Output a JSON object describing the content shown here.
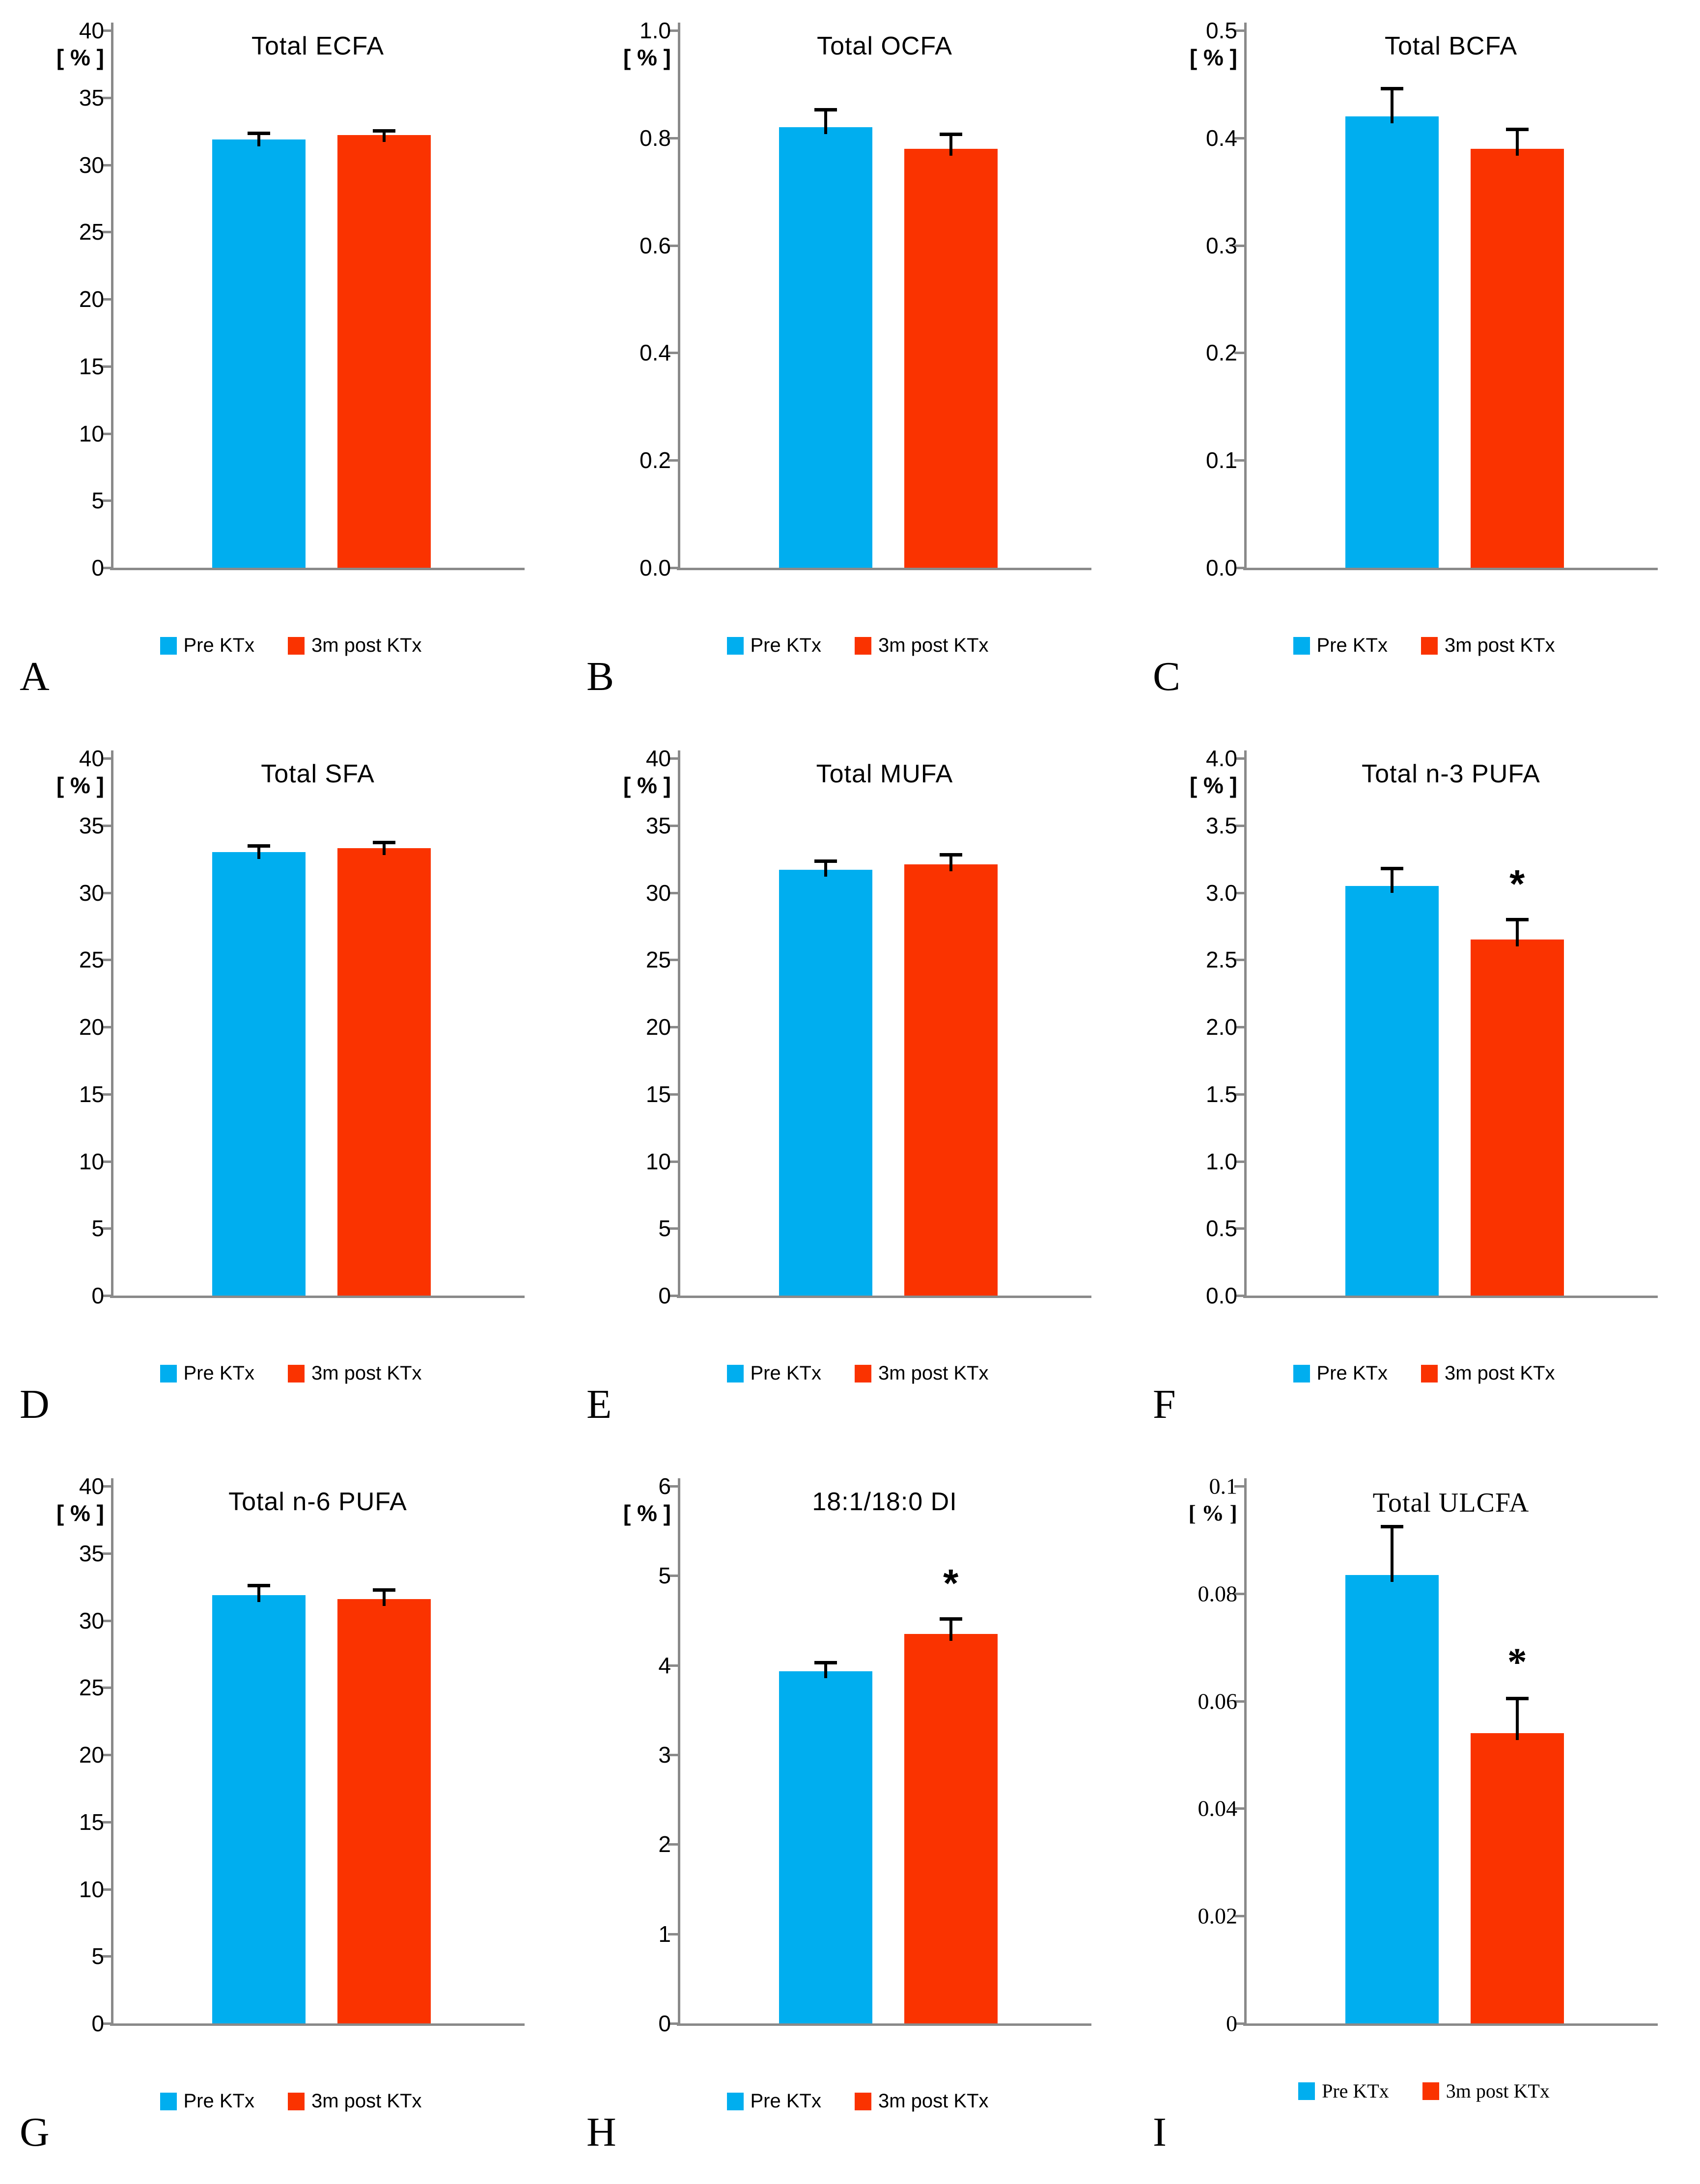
{
  "figure": {
    "background": "#ffffff",
    "unit_label": "[ % ]"
  },
  "colors": {
    "pre": "#00AEEF",
    "post": "#FA3300",
    "axis": "#8a8a8a",
    "error_bar": "#000000",
    "text": "#000000"
  },
  "legend": {
    "items": [
      {
        "label": "Pre KTx",
        "color_key": "pre"
      },
      {
        "label": "3m post KTx",
        "color_key": "post"
      }
    ]
  },
  "chart_data": [
    {
      "letter": "A",
      "type": "bar",
      "title": "Total ECFA",
      "ylabel": "[ % ]",
      "ylim": [
        0,
        40
      ],
      "yticks": [
        "40",
        "35",
        "30",
        "25",
        "20",
        "15",
        "10",
        "5",
        "0"
      ],
      "categories": [
        "Pre KTx",
        "3m post KTx"
      ],
      "values": [
        31.9,
        32.2
      ],
      "errors": [
        0.45,
        0.35
      ],
      "significant": [
        false,
        false
      ],
      "sig_marker": ""
    },
    {
      "letter": "B",
      "type": "bar",
      "title": "Total OCFA",
      "ylabel": "[ % ]",
      "ylim": [
        0,
        1.0
      ],
      "yticks": [
        "1.0",
        "0.8",
        "0.6",
        "0.4",
        "0.2",
        "0.0"
      ],
      "categories": [
        "Pre KTx",
        "3m post KTx"
      ],
      "values": [
        0.82,
        0.78
      ],
      "errors": [
        0.033,
        0.027
      ],
      "significant": [
        false,
        false
      ],
      "sig_marker": ""
    },
    {
      "letter": "C",
      "type": "bar",
      "title": "Total BCFA",
      "ylabel": "[ % ]",
      "ylim": [
        0,
        0.5
      ],
      "yticks": [
        "0.5",
        "0.4",
        "0.3",
        "0.2",
        "0.1",
        "0.0"
      ],
      "categories": [
        "Pre KTx",
        "3m post KTx"
      ],
      "values": [
        0.42,
        0.39
      ],
      "errors": [
        0.026,
        0.018
      ],
      "significant": [
        false,
        false
      ],
      "sig_marker": ""
    },
    {
      "letter": "D",
      "type": "bar",
      "title": "Total SFA",
      "ylabel": "[ % ]",
      "ylim": [
        0,
        40
      ],
      "yticks": [
        "40",
        "35",
        "30",
        "25",
        "20",
        "15",
        "10",
        "5",
        "0"
      ],
      "categories": [
        "Pre KTx",
        "3m post KTx"
      ],
      "values": [
        33.0,
        33.3
      ],
      "errors": [
        0.5,
        0.45
      ],
      "significant": [
        false,
        false
      ],
      "sig_marker": ""
    },
    {
      "letter": "E",
      "type": "bar",
      "title": "Total MUFA",
      "ylabel": "[ % ]",
      "ylim": [
        0,
        40
      ],
      "yticks": [
        "40",
        "35",
        "30",
        "25",
        "20",
        "15",
        "10",
        "5",
        "0"
      ],
      "categories": [
        "Pre KTx",
        "3m post KTx"
      ],
      "values": [
        31.7,
        32.1
      ],
      "errors": [
        0.65,
        0.75
      ],
      "significant": [
        false,
        false
      ],
      "sig_marker": ""
    },
    {
      "letter": "F",
      "type": "bar",
      "title": "Total n-3 PUFA",
      "ylabel": "[ % ]",
      "ylim": [
        0,
        4.0
      ],
      "yticks": [
        "4.0",
        "3.5",
        "3.0",
        "2.5",
        "2.0",
        "1.5",
        "1.0",
        "0.5",
        "0.0"
      ],
      "categories": [
        "Pre KTx",
        "3m post KTx"
      ],
      "values": [
        3.05,
        2.65
      ],
      "errors": [
        0.13,
        0.15
      ],
      "significant": [
        false,
        true
      ],
      "sig_marker": "*"
    },
    {
      "letter": "G",
      "type": "bar",
      "title": "Total n-6 PUFA",
      "ylabel": "[ % ]",
      "ylim": [
        0,
        40
      ],
      "yticks": [
        "40",
        "35",
        "30",
        "25",
        "20",
        "15",
        "10",
        "5",
        "0"
      ],
      "categories": [
        "Pre KTx",
        "3m post KTx"
      ],
      "values": [
        31.9,
        31.6
      ],
      "errors": [
        0.7,
        0.7
      ],
      "significant": [
        false,
        false
      ],
      "sig_marker": ""
    },
    {
      "letter": "H",
      "type": "bar",
      "title": "18:1/18:0 DI",
      "ylabel": "[ % ]",
      "ylim": [
        0,
        6
      ],
      "yticks": [
        "6",
        "5",
        "4",
        "3",
        "2",
        "1",
        "0"
      ],
      "categories": [
        "Pre KTx",
        "3m post KTx"
      ],
      "values": [
        3.93,
        4.35
      ],
      "errors": [
        0.1,
        0.17
      ],
      "significant": [
        false,
        true
      ],
      "sig_marker": "*"
    },
    {
      "letter": "I",
      "type": "bar",
      "title": "Total ULCFA",
      "ylabel": "[ % ]",
      "ylim": [
        0,
        0.1
      ],
      "yticks": [
        "0.1",
        "0.08",
        "0.06",
        "0.04",
        "0.02",
        "0"
      ],
      "categories": [
        "Pre KTx",
        "3m post KTx"
      ],
      "values": [
        0.0835,
        0.054
      ],
      "errors": [
        0.009,
        0.0065
      ],
      "significant": [
        false,
        true
      ],
      "sig_marker": "*"
    }
  ]
}
